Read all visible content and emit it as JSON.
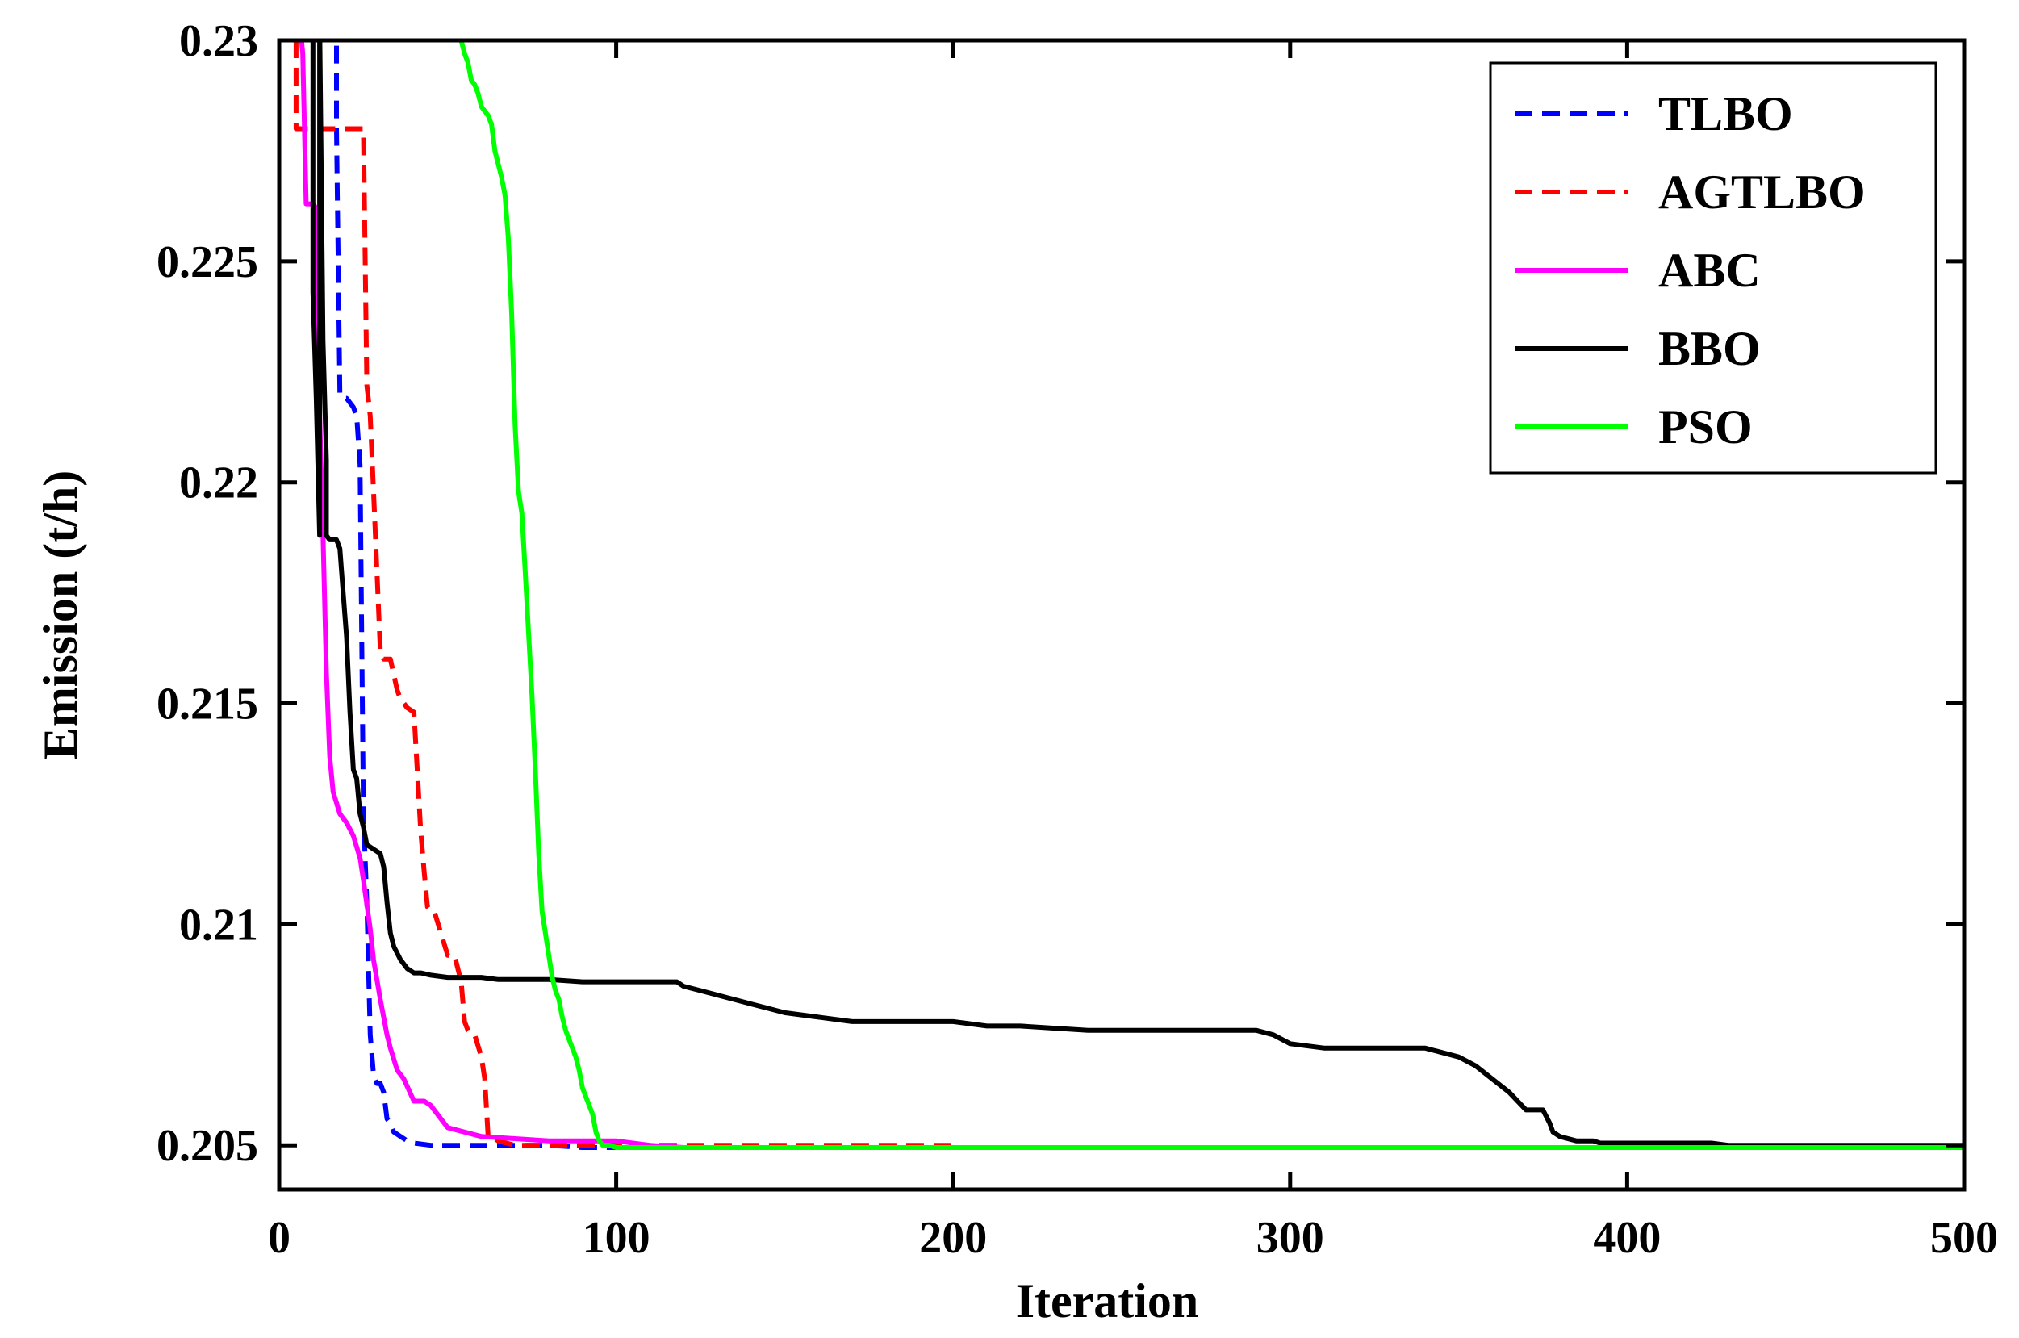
{
  "chart_data": {
    "type": "line",
    "title": "",
    "xlabel": "Iteration",
    "ylabel": "Emission (t/h)",
    "xlim": [
      0,
      500
    ],
    "ylim": [
      0.204,
      0.23
    ],
    "xticks": [
      0,
      100,
      200,
      300,
      400,
      500
    ],
    "xtick_labels": [
      "0",
      "100",
      "200",
      "300",
      "400",
      "500"
    ],
    "yticks": [
      0.205,
      0.21,
      0.215,
      0.22,
      0.225,
      0.23
    ],
    "ytick_labels": [
      "0.205",
      "0.21",
      "0.215",
      "0.22",
      "0.225",
      "0.23"
    ],
    "grid": false,
    "legend_position": "top-right",
    "series": [
      {
        "name": "TLBO",
        "color": "#0000ff",
        "dash": "dash",
        "x": [
          17,
          17,
          18,
          19,
          20,
          21,
          22,
          23,
          24,
          25,
          26,
          27,
          28,
          29,
          30,
          31,
          32,
          33,
          34,
          36,
          38,
          40,
          45,
          50,
          60,
          70,
          80,
          90,
          100,
          120,
          150,
          200,
          250,
          300,
          308
        ],
        "y": [
          0.2305,
          0.228,
          0.222,
          0.2219,
          0.2219,
          0.2218,
          0.2217,
          0.2215,
          0.2204,
          0.2125,
          0.2105,
          0.2075,
          0.2066,
          0.2064,
          0.2064,
          0.2062,
          0.2056,
          0.2055,
          0.2053,
          0.2052,
          0.2051,
          0.20505,
          0.205,
          0.205,
          0.205,
          0.205,
          0.205,
          0.20495,
          0.20495,
          0.20495,
          0.20495,
          0.20495,
          0.20495,
          0.20495,
          0.20495
        ]
      },
      {
        "name": "AGTLBO",
        "color": "#ff0000",
        "dash": "dash",
        "x": [
          5,
          5,
          10,
          20,
          25,
          26,
          27,
          28,
          29,
          30,
          31,
          33,
          35,
          36,
          38,
          40,
          42,
          43,
          44,
          45,
          46,
          48,
          50,
          52,
          54,
          55,
          56,
          58,
          60,
          61,
          62,
          63,
          65,
          70,
          80,
          90,
          100,
          150,
          200
        ],
        "y": [
          0.23,
          0.228,
          0.228,
          0.228,
          0.228,
          0.2222,
          0.2215,
          0.2198,
          0.218,
          0.2162,
          0.216,
          0.216,
          0.2153,
          0.2151,
          0.2149,
          0.2148,
          0.2121,
          0.2112,
          0.2104,
          0.2103,
          0.2103,
          0.2098,
          0.2093,
          0.2093,
          0.2087,
          0.2078,
          0.2076,
          0.2075,
          0.207,
          0.2065,
          0.2052,
          0.2052,
          0.2051,
          0.205,
          0.205,
          0.205,
          0.205,
          0.205,
          0.205
        ]
      },
      {
        "name": "ABC",
        "color": "#ff00ff",
        "dash": "solid",
        "x": [
          6,
          7,
          8,
          9,
          10,
          11,
          12,
          13,
          14,
          15,
          16,
          18,
          20,
          22,
          24,
          25,
          27,
          28,
          30,
          32,
          33,
          35,
          37,
          40,
          43,
          45,
          48,
          50,
          55,
          60,
          70,
          80,
          90,
          100,
          110,
          120,
          140,
          160,
          180
        ],
        "y": [
          0.2305,
          0.2297,
          0.2263,
          0.2263,
          0.2263,
          0.2262,
          0.2215,
          0.2188,
          0.2157,
          0.2138,
          0.213,
          0.2125,
          0.2123,
          0.212,
          0.2115,
          0.211,
          0.2099,
          0.2092,
          0.2083,
          0.2075,
          0.2072,
          0.2067,
          0.2065,
          0.206,
          0.206,
          0.2059,
          0.2056,
          0.2054,
          0.2053,
          0.2052,
          0.20515,
          0.2051,
          0.2051,
          0.2051,
          0.205,
          0.20495,
          0.20495,
          0.20495,
          0.20495
        ]
      },
      {
        "name": "BBO",
        "color": "#000000",
        "dash": "solid",
        "x": [
          10,
          10,
          11,
          12,
          12,
          13,
          14,
          14,
          15,
          17,
          18,
          19,
          20,
          21,
          22,
          23,
          24,
          25,
          26,
          28,
          30,
          31,
          32,
          33,
          34,
          36,
          38,
          40,
          42,
          45,
          50,
          55,
          60,
          65,
          70,
          80,
          90,
          100,
          110,
          118,
          120,
          125,
          130,
          135,
          140,
          145,
          150,
          160,
          170,
          180,
          200,
          210,
          220,
          240,
          260,
          280,
          290,
          295,
          300,
          310,
          320,
          330,
          340,
          345,
          350,
          355,
          360,
          365,
          370,
          373,
          375,
          377,
          378,
          380,
          385,
          390,
          392,
          400,
          410,
          420,
          425,
          430,
          440,
          450,
          500
        ],
        "y": [
          0.2305,
          0.2243,
          0.2219,
          0.2188,
          0.2305,
          0.2232,
          0.2205,
          0.2188,
          0.2187,
          0.2187,
          0.2185,
          0.2175,
          0.2165,
          0.2148,
          0.2135,
          0.2133,
          0.2125,
          0.2122,
          0.2118,
          0.2117,
          0.2116,
          0.2113,
          0.2105,
          0.2098,
          0.2095,
          0.2092,
          0.209,
          0.2089,
          0.2089,
          0.20885,
          0.2088,
          0.2088,
          0.2088,
          0.20875,
          0.20875,
          0.20875,
          0.2087,
          0.2087,
          0.2087,
          0.2087,
          0.2086,
          0.2085,
          0.2084,
          0.2083,
          0.2082,
          0.2081,
          0.208,
          0.2079,
          0.2078,
          0.2078,
          0.2078,
          0.2077,
          0.2077,
          0.2076,
          0.2076,
          0.2076,
          0.2076,
          0.2075,
          0.2073,
          0.2072,
          0.2072,
          0.2072,
          0.2072,
          0.2071,
          0.207,
          0.2068,
          0.2065,
          0.2062,
          0.2058,
          0.2058,
          0.2058,
          0.2055,
          0.2053,
          0.2052,
          0.2051,
          0.2051,
          0.20505,
          0.20505,
          0.20505,
          0.20505,
          0.20505,
          0.205,
          0.205,
          0.205,
          0.205
        ]
      },
      {
        "name": "PSO",
        "color": "#00ff00",
        "dash": "solid",
        "x": [
          54,
          55,
          56,
          57,
          58,
          59,
          60,
          62,
          63,
          64,
          66,
          67,
          68,
          69,
          70,
          71,
          72,
          73,
          74,
          75,
          76,
          77,
          78,
          79,
          80,
          81,
          82,
          83,
          84,
          85,
          86,
          87,
          88,
          89,
          90,
          91,
          92,
          93,
          94,
          95,
          96,
          97,
          98,
          100,
          110,
          120,
          150,
          200,
          300,
          400,
          500
        ],
        "y": [
          0.23,
          0.2297,
          0.2295,
          0.2291,
          0.229,
          0.2288,
          0.2285,
          0.2283,
          0.2281,
          0.2275,
          0.2269,
          0.2265,
          0.2255,
          0.2238,
          0.2213,
          0.2198,
          0.2193,
          0.218,
          0.2166,
          0.2152,
          0.2135,
          0.2116,
          0.2103,
          0.2098,
          0.2093,
          0.2088,
          0.2085,
          0.2083,
          0.2079,
          0.2076,
          0.2074,
          0.2072,
          0.207,
          0.2067,
          0.2063,
          0.2061,
          0.2059,
          0.2057,
          0.2053,
          0.2051,
          0.205,
          0.205,
          0.205,
          0.20495,
          0.20495,
          0.20495,
          0.20495,
          0.20495,
          0.20495,
          0.20495,
          0.20495
        ]
      }
    ]
  }
}
